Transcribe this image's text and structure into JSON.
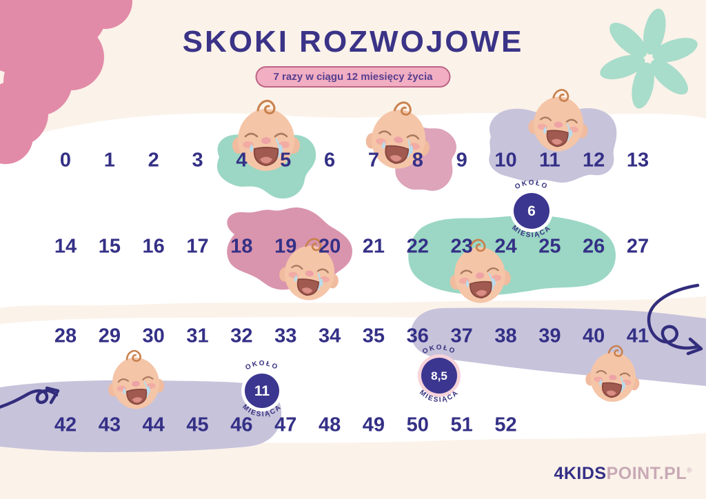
{
  "title": "SKOKI ROZWOJOWE",
  "subtitle": "7 razy w ciągu 12 miesięcy życia",
  "weeks": {
    "rows": [
      [
        "0",
        "1",
        "2",
        "3",
        "4",
        "5",
        "6",
        "7",
        "8",
        "9",
        "10",
        "11",
        "12",
        "13"
      ],
      [
        "14",
        "15",
        "16",
        "17",
        "18",
        "19",
        "20",
        "21",
        "22",
        "23",
        "24",
        "25",
        "26",
        "27"
      ],
      [
        "28",
        "29",
        "30",
        "31",
        "32",
        "33",
        "34",
        "35",
        "36",
        "37",
        "38",
        "39",
        "40",
        "41"
      ],
      [
        "42",
        "43",
        "44",
        "45",
        "46",
        "47",
        "48",
        "49",
        "50",
        "51",
        "52"
      ]
    ]
  },
  "leaps": [
    {
      "weeks": "4–5",
      "color": "#9bd7c4"
    },
    {
      "weeks": "8",
      "color": "#dda4ba"
    },
    {
      "weeks": "10–12",
      "color": "#c7c3db"
    },
    {
      "weeks": "18–20",
      "color": "#d995ad"
    },
    {
      "weeks": "22–26",
      "color": "#9bd7c4"
    },
    {
      "weeks": "36–46",
      "color": "#c7c3db"
    }
  ],
  "badges": [
    {
      "top": "OKOŁO",
      "value": "6",
      "bottom": "MIESIĄCA"
    },
    {
      "top": "OKOŁO",
      "value": "8,5",
      "bottom": "MIESIĄCA"
    },
    {
      "top": "OKOŁO",
      "value": "11",
      "bottom": "MIESIĄCA"
    }
  ],
  "logo": {
    "part1": "4KIDS",
    "part2": "POINT.PL",
    "reg": "®"
  },
  "icons": {
    "baby": "crying-baby-face",
    "flower": "teal-flower",
    "scallop": "pink-scallop-cloud",
    "arrow_left": "hand-drawn-arrow",
    "arrow_right": "hand-drawn-curly-arrow"
  },
  "colors": {
    "background_cream": "#fbf2e9",
    "background_white": "#ffffff",
    "number_indigo": "#343086",
    "title_indigo": "#3a3387",
    "badge_indigo": "#3b368f",
    "pill_fill": "#f2aec2",
    "pill_border": "#bd6486",
    "corner_pink": "#e28ba8",
    "flower_teal": "#a8dccb",
    "logo_mauve": "#c8a9b5"
  }
}
